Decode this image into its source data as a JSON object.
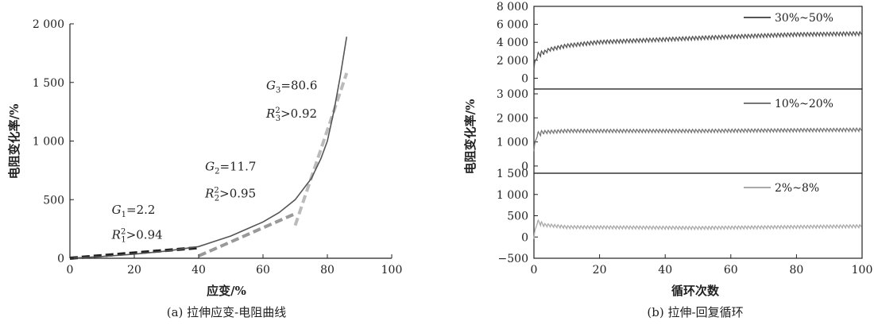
{
  "chart_data": [
    {
      "type": "line",
      "caption": "(a) 拉伸应变-电阻曲线",
      "xlabel": "应变/%",
      "ylabel": "电阻变化率/%",
      "xlim": [
        0,
        100
      ],
      "ylim": [
        0,
        2000
      ],
      "xticks": [
        "0",
        "20",
        "40",
        "60",
        "80",
        "100"
      ],
      "yticks": [
        "0",
        "500",
        "1 000",
        "1 500",
        "2 000"
      ],
      "series": [
        {
          "x": [
            0,
            10,
            20,
            30,
            40,
            45,
            50,
            55,
            60,
            65,
            70,
            75,
            78,
            80,
            82,
            84,
            86
          ],
          "y": [
            0,
            15,
            35,
            62,
            100,
            145,
            190,
            250,
            310,
            390,
            500,
            680,
            850,
            1000,
            1250,
            1550,
            1890
          ],
          "color": "#555555"
        }
      ],
      "fits": [
        {
          "x": [
            0,
            40
          ],
          "y": [
            0,
            90
          ],
          "color": "#222222"
        },
        {
          "x": [
            40,
            70
          ],
          "y": [
            20,
            380
          ],
          "color": "#999999"
        },
        {
          "x": [
            70,
            86
          ],
          "y": [
            280,
            1580
          ],
          "color": "#bbbbbb"
        }
      ],
      "annotations": [
        {
          "id": "g1",
          "G_sub": "1",
          "G_val": "=2.2",
          "R_sub": "1",
          "R_val": ">0.94",
          "x": 13,
          "yG": 380,
          "yR": 165
        },
        {
          "id": "g2",
          "G_sub": "2",
          "G_val": "=11.7",
          "R_sub": "2",
          "R_val": ">0.95",
          "x": 42,
          "yG": 750,
          "yR": 520
        },
        {
          "id": "g3",
          "G_sub": "3",
          "G_val": "=80.6",
          "R_sub": "3",
          "R_val": ">0.92",
          "x": 61,
          "yG": 1440,
          "yR": 1200
        }
      ]
    },
    {
      "type": "line",
      "caption": "(b) 拉伸-回复循环",
      "xlabel": "循环次数",
      "ylabel": "电阻变化率/%",
      "xlim": [
        0,
        100
      ],
      "xticks": [
        "0",
        "20",
        "40",
        "60",
        "80",
        "100"
      ],
      "panels": [
        {
          "name": "30%~50%",
          "ylim": [
            -1200,
            8000
          ],
          "yticks": [
            "0",
            "2 000",
            "4 000",
            "6 000",
            "8 000"
          ],
          "ytick_values": [
            0,
            2000,
            4000,
            6000,
            8000
          ],
          "color": "#555555",
          "base": [
            [
              0,
              1200
            ],
            [
              1,
              2500
            ],
            [
              5,
              3200
            ],
            [
              10,
              3600
            ],
            [
              20,
              4000
            ],
            [
              40,
              4300
            ],
            [
              60,
              4600
            ],
            [
              80,
              4850
            ],
            [
              100,
              4950
            ]
          ],
          "amp": 450
        },
        {
          "name": "10%~20%",
          "ylim": [
            -300,
            3200
          ],
          "yticks": [
            "0",
            "1 000",
            "2 000",
            "3 000"
          ],
          "ytick_values": [
            0,
            1000,
            2000,
            3000
          ],
          "color": "#777777",
          "base": [
            [
              0,
              700
            ],
            [
              1,
              1300
            ],
            [
              3,
              1400
            ],
            [
              10,
              1450
            ],
            [
              50,
              1450
            ],
            [
              100,
              1500
            ]
          ],
          "amp": 150
        },
        {
          "name": "2%~8%",
          "ylim": [
            -500,
            1500
          ],
          "yticks": [
            "−500",
            "0",
            "500",
            "1 000",
            "1 500"
          ],
          "ytick_values": [
            -500,
            0,
            500,
            1000,
            1500
          ],
          "color": "#aaaaaa",
          "base": [
            [
              0,
              0
            ],
            [
              1,
              350
            ],
            [
              3,
              280
            ],
            [
              10,
              230
            ],
            [
              50,
              210
            ],
            [
              100,
              250
            ]
          ],
          "amp": 80
        }
      ]
    }
  ]
}
